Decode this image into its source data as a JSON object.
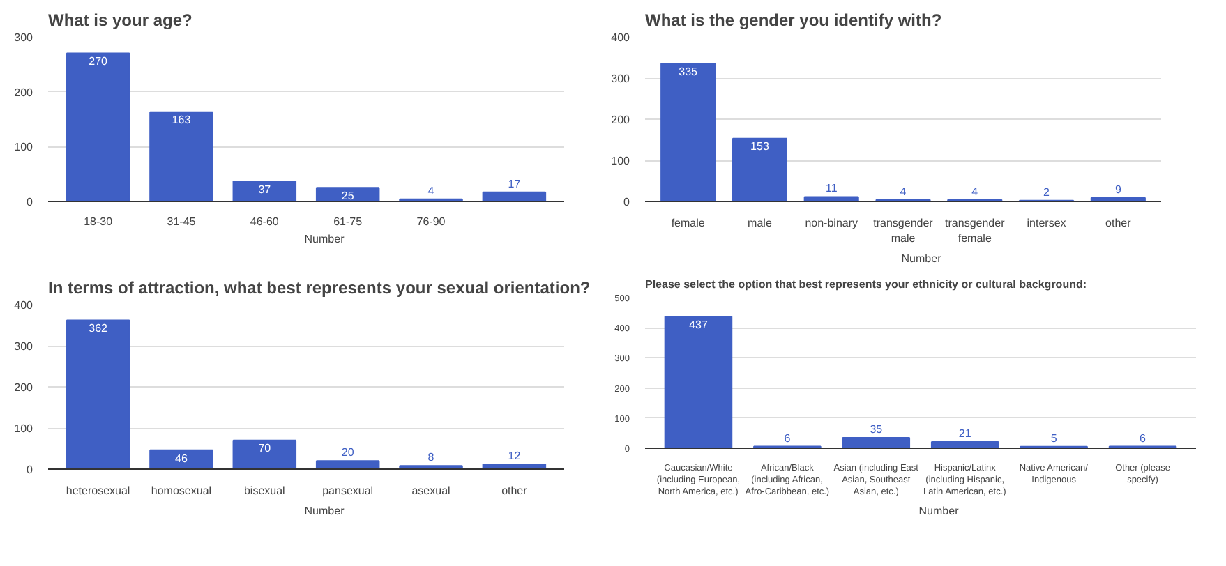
{
  "chart_data": [
    {
      "type": "bar",
      "title": "What is your age?",
      "categories": [
        "18-30",
        "31-45",
        "46-60",
        "61-75",
        "76-90",
        null
      ],
      "series": [
        {
          "name": "Number",
          "color": "#3f5fc4",
          "values": [
            270,
            163,
            37,
            25,
            4,
            17
          ]
        }
      ],
      "ylim": [
        0,
        300
      ],
      "yticks": [
        0,
        100,
        200,
        300
      ],
      "grid": "y",
      "legend": "bottom",
      "data_labels": true
    },
    {
      "type": "bar",
      "title": "What is the gender you identify with?",
      "categories": [
        "female",
        "male",
        "non-binary",
        "transgender male",
        "transgender female",
        "intersex",
        "other"
      ],
      "series": [
        {
          "name": "Number",
          "color": "#3f5fc4",
          "values": [
            335,
            153,
            11,
            4,
            4,
            2,
            9
          ]
        }
      ],
      "ylim": [
        0,
        400
      ],
      "yticks": [
        0,
        100,
        200,
        300,
        400
      ],
      "grid": "y",
      "legend": "bottom",
      "data_labels": true
    },
    {
      "type": "bar",
      "title": "In terms of attraction, what best represents your sexual orientation?",
      "categories": [
        "heterosexual",
        "homosexual",
        "bisexual",
        "pansexual",
        "asexual",
        "other"
      ],
      "series": [
        {
          "name": "Number",
          "color": "#3f5fc4",
          "values": [
            362,
            46,
            70,
            20,
            8,
            12
          ]
        }
      ],
      "ylim": [
        0,
        400
      ],
      "yticks": [
        0,
        100,
        200,
        300,
        400
      ],
      "grid": "y",
      "legend": "bottom",
      "data_labels": true
    },
    {
      "type": "bar",
      "title": "Please select the option that best represents your ethnicity or cultural background:",
      "categories": [
        "Caucasian/White (including European, North America, etc.)",
        "African/Black (including African, Afro-Caribbean, etc.)",
        "Asian (including East Asian, Southeast Asian, etc.)",
        "Hispanic/Latinx (including Hispanic, Latin American, etc.)",
        "Native American/ Indigenous",
        "Other (please specify)"
      ],
      "series": [
        {
          "name": "Number",
          "color": "#3f5fc4",
          "values": [
            437,
            6,
            35,
            21,
            5,
            6
          ]
        }
      ],
      "ylim": [
        0,
        500
      ],
      "yticks": [
        0,
        100,
        200,
        300,
        400,
        500
      ],
      "grid": "y",
      "legend": "bottom",
      "data_labels": true
    }
  ]
}
